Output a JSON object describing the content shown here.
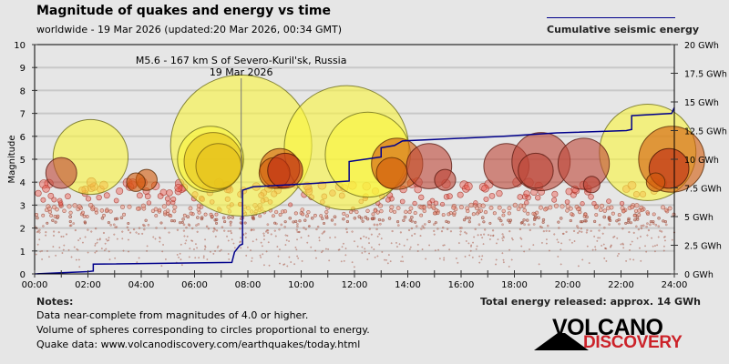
{
  "header": {
    "title": "Magnitude of quakes and energy vs time",
    "subtitle": "worldwide - 19 Mar 2026 (updated:20 Mar 2026, 00:34 GMT)"
  },
  "legend": {
    "label": "Cumulative seismic energy",
    "color": "#00008b"
  },
  "notes": {
    "heading": "Notes:",
    "lines": [
      "Data near-complete from magnitudes of 4.0 or higher.",
      "Volume of spheres corresponding to circles proportional to energy.",
      "Quake data: www.volcanodiscovery.com/earthquakes/today.html"
    ]
  },
  "total_energy": "Total energy released: approx. 14 GWh",
  "logo": {
    "top": "VOLCANO",
    "bottom": "DISCOVERY",
    "accent": "#cc2229"
  },
  "chart_data": {
    "type": "scatter",
    "title": "Magnitude of quakes and energy vs time",
    "xlabel": "",
    "ylabel": "Magnitude",
    "y2label": "Cumulative seismic energy",
    "xlim": [
      0,
      24
    ],
    "ylim": [
      0,
      10
    ],
    "y2lim": [
      0,
      20
    ],
    "x_ticks": [
      "00:00",
      "02:00",
      "04:00",
      "06:00",
      "08:00",
      "10:00",
      "12:00",
      "14:00",
      "16:00",
      "18:00",
      "20:00",
      "22:00",
      "24:00"
    ],
    "y_ticks": [
      "0",
      "1",
      "2",
      "3",
      "4",
      "5",
      "6",
      "7",
      "8",
      "9",
      "10"
    ],
    "y2_ticks": [
      "0 GWh",
      "2.5 GWh",
      "5 GWh",
      "7.5 GWh",
      "10 GWh",
      "12.5 GWh",
      "15 GWh",
      "17.5 GWh",
      "20 GWh"
    ],
    "grid": true,
    "legend_position": "top-right",
    "annotation": {
      "line1": "M5.6 - 167 km S of Severo-Kuril'sk, Russia",
      "line2": "19 Mar 2026",
      "hour": 7.75,
      "magnitude": 5.6
    },
    "large_quakes": [
      {
        "hour": 2.1,
        "mag": 5.1,
        "color": "yellow"
      },
      {
        "hour": 7.75,
        "mag": 5.6,
        "color": "yellow"
      },
      {
        "hour": 6.6,
        "mag": 5.0,
        "color": "yellow"
      },
      {
        "hour": 6.7,
        "mag": 4.9,
        "color": "gold"
      },
      {
        "hour": 6.9,
        "mag": 4.7,
        "color": "gold"
      },
      {
        "hour": 11.7,
        "mag": 5.5,
        "color": "yellow"
      },
      {
        "hour": 12.5,
        "mag": 5.2,
        "color": "yellow"
      },
      {
        "hour": 23.0,
        "mag": 5.3,
        "color": "yellow"
      },
      {
        "hour": 1.0,
        "mag": 4.4,
        "color": "brown"
      },
      {
        "hour": 4.2,
        "mag": 4.1,
        "color": "darkorange"
      },
      {
        "hour": 3.8,
        "mag": 4.0,
        "color": "darkorange"
      },
      {
        "hour": 9.2,
        "mag": 4.6,
        "color": "darkorange"
      },
      {
        "hour": 9.0,
        "mag": 4.4,
        "color": "darkorange"
      },
      {
        "hour": 9.4,
        "mag": 4.5,
        "color": "darkred"
      },
      {
        "hour": 13.6,
        "mag": 4.8,
        "color": "darkorange"
      },
      {
        "hour": 13.4,
        "mag": 4.4,
        "color": "darkorange"
      },
      {
        "hour": 14.8,
        "mag": 4.7,
        "color": "brown"
      },
      {
        "hour": 15.4,
        "mag": 4.1,
        "color": "brown"
      },
      {
        "hour": 17.7,
        "mag": 4.7,
        "color": "brown"
      },
      {
        "hour": 19.0,
        "mag": 4.9,
        "color": "brown"
      },
      {
        "hour": 18.8,
        "mag": 4.5,
        "color": "brown"
      },
      {
        "hour": 20.6,
        "mag": 4.8,
        "color": "brown"
      },
      {
        "hour": 20.9,
        "mag": 3.9,
        "color": "brown"
      },
      {
        "hour": 23.9,
        "mag": 5.0,
        "color": "darkorange"
      },
      {
        "hour": 23.8,
        "mag": 4.6,
        "color": "darkred"
      },
      {
        "hour": 23.3,
        "mag": 4.0,
        "color": "darkorange"
      }
    ],
    "cumulative_energy": {
      "name": "Cumulative seismic energy",
      "unit": "GWh",
      "x": [
        0,
        2.0,
        2.2,
        2.2,
        7.4,
        7.5,
        7.7,
        7.8,
        7.8,
        8.2,
        10.5,
        11.8,
        11.8,
        12.4,
        13.0,
        13.0,
        13.5,
        13.8,
        17.6,
        19.6,
        22.2,
        22.4,
        22.4,
        23.9,
        24.0
      ],
      "y": [
        0,
        0.2,
        0.25,
        0.85,
        1.0,
        1.9,
        2.5,
        2.6,
        7.3,
        7.6,
        7.9,
        8.1,
        9.8,
        10.0,
        10.2,
        11.0,
        11.2,
        11.6,
        12.0,
        12.3,
        12.5,
        12.6,
        13.8,
        14.0,
        14.5
      ]
    }
  }
}
